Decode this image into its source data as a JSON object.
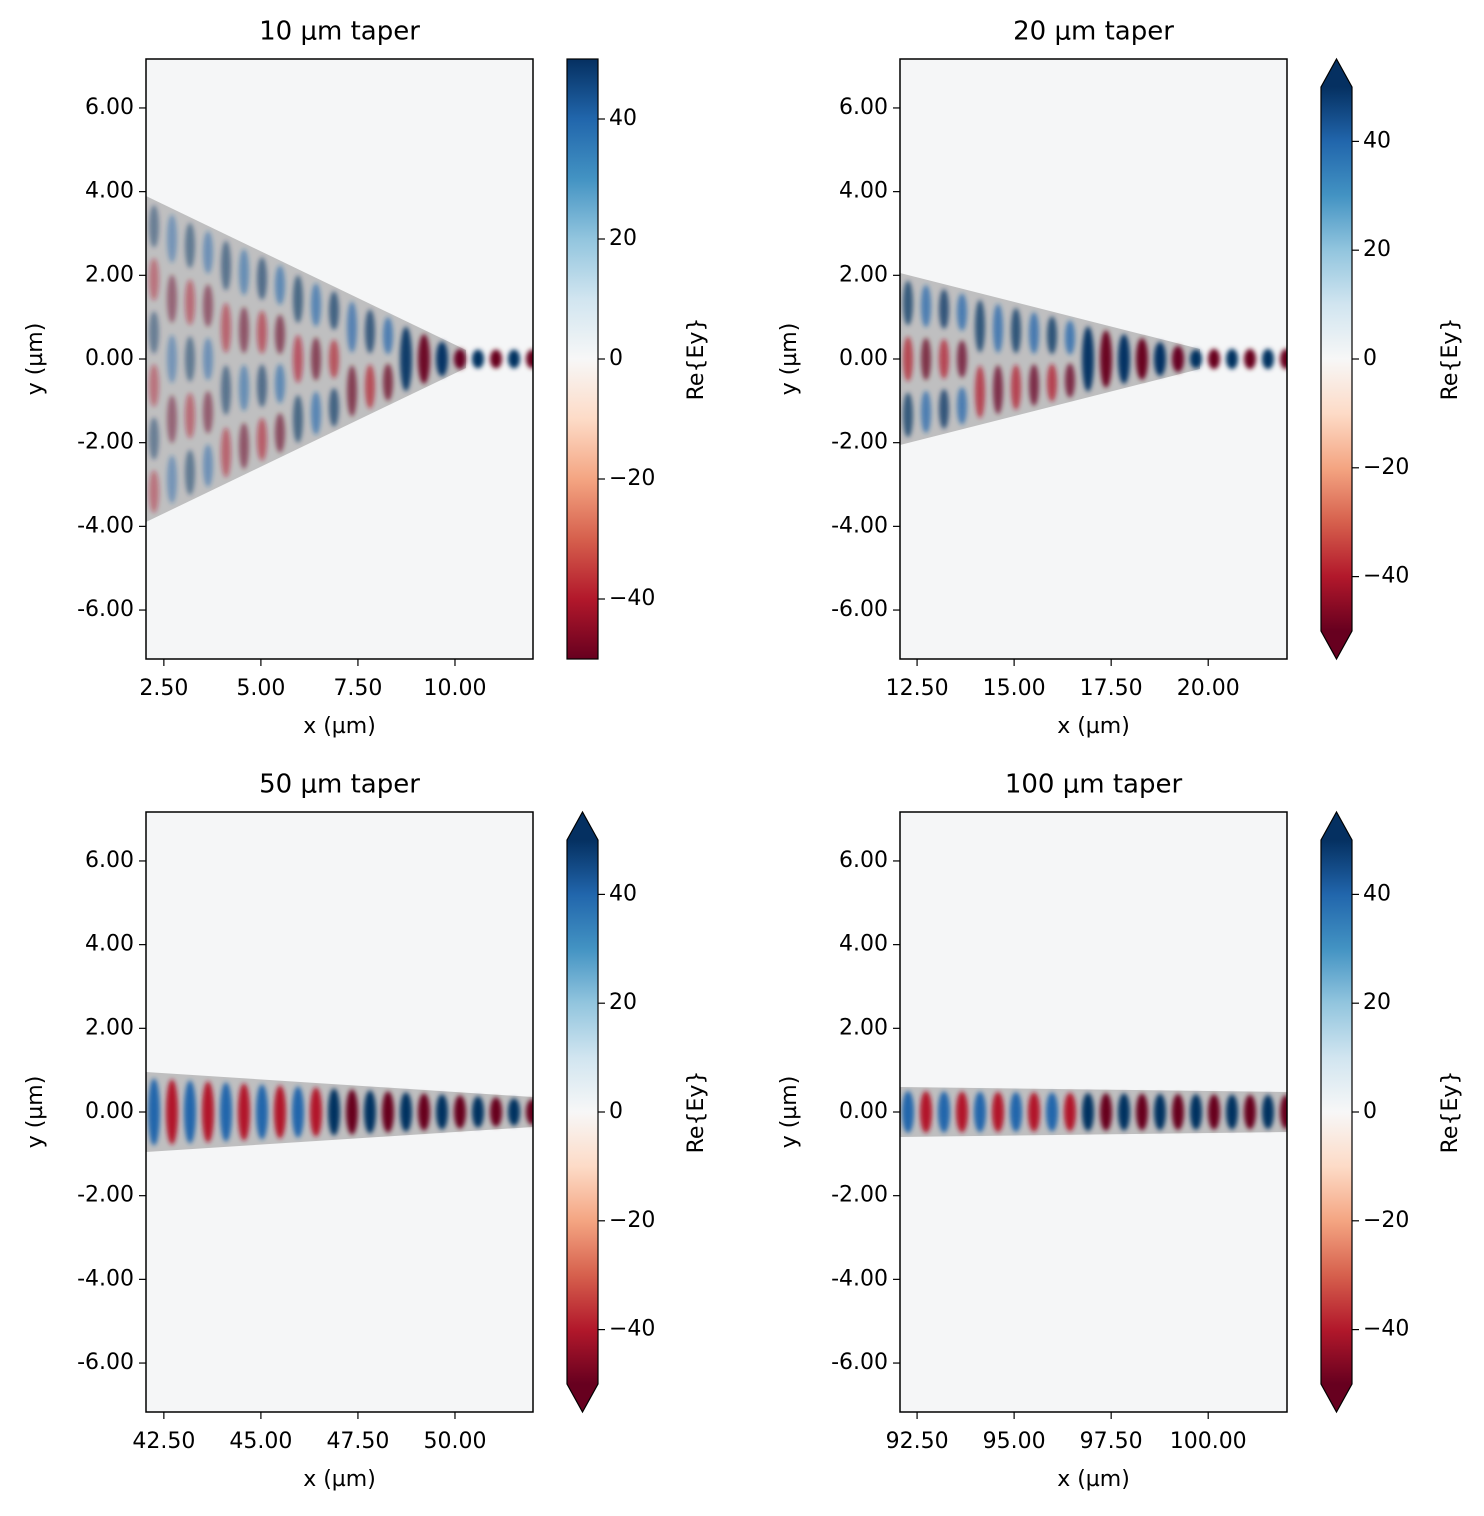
{
  "chart_data": [
    {
      "type": "heatmap",
      "title": "10 μm taper",
      "xlabel": "x (µm)",
      "ylabel": "y (µm)",
      "xlim": [
        2.04,
        12.01
      ],
      "ylim": [
        -7.17,
        7.17
      ],
      "xticks": [
        {
          "value": 2.5,
          "label": "2.50"
        },
        {
          "value": 5,
          "label": "5.00"
        },
        {
          "value": 7.5,
          "label": "7.50"
        },
        {
          "value": 10,
          "label": "10.00"
        }
      ],
      "yticks": [
        {
          "value": -6,
          "label": "-6.00"
        },
        {
          "value": -4,
          "label": "-4.00"
        },
        {
          "value": -2,
          "label": "-2.00"
        },
        {
          "value": 0,
          "label": "0.00"
        },
        {
          "value": 2,
          "label": "2.00"
        },
        {
          "value": 4,
          "label": "4.00"
        },
        {
          "value": 6,
          "label": "6.00"
        }
      ],
      "colorbar": {
        "label": "Re{Ey}",
        "lim": [
          -50,
          50
        ],
        "extend": "neither",
        "ticks": [
          {
            "value": -40,
            "label": "−40"
          },
          {
            "value": -20,
            "label": "−20"
          },
          0,
          20,
          40
        ]
      }
    },
    {
      "type": "heatmap",
      "title": "20 μm taper",
      "xlabel": "x (µm)",
      "ylabel": "y (µm)",
      "xlim": [
        12.06,
        22.03
      ],
      "ylim": [
        -7.17,
        7.17
      ],
      "xticks": [
        {
          "value": 12.5,
          "label": "12.50"
        },
        {
          "value": 15,
          "label": "15.00"
        },
        {
          "value": 17.5,
          "label": "17.50"
        },
        {
          "value": 20,
          "label": "20.00"
        }
      ],
      "yticks": [
        {
          "value": -6,
          "label": "-6.00"
        },
        {
          "value": -4,
          "label": "-4.00"
        },
        {
          "value": -2,
          "label": "-2.00"
        },
        {
          "value": 0,
          "label": "0.00"
        },
        {
          "value": 2,
          "label": "2.00"
        },
        {
          "value": 4,
          "label": "4.00"
        },
        {
          "value": 6,
          "label": "6.00"
        }
      ],
      "colorbar": {
        "label": "Re{Ey}",
        "lim": [
          -50,
          50
        ],
        "extend": "both",
        "ticks": [
          {
            "value": -40,
            "label": "−40"
          },
          {
            "value": -20,
            "label": "−20"
          },
          0,
          20,
          40
        ]
      }
    },
    {
      "type": "heatmap",
      "title": "50 μm taper",
      "xlabel": "x (µm)",
      "ylabel": "y (µm)",
      "xlim": [
        42.04,
        52.01
      ],
      "ylim": [
        -7.17,
        7.17
      ],
      "xticks": [
        {
          "value": 42.5,
          "label": "42.50"
        },
        {
          "value": 45,
          "label": "45.00"
        },
        {
          "value": 47.5,
          "label": "47.50"
        },
        {
          "value": 50,
          "label": "50.00"
        }
      ],
      "yticks": [
        {
          "value": -6,
          "label": "-6.00"
        },
        {
          "value": -4,
          "label": "-4.00"
        },
        {
          "value": -2,
          "label": "-2.00"
        },
        {
          "value": 0,
          "label": "0.00"
        },
        {
          "value": 2,
          "label": "2.00"
        },
        {
          "value": 4,
          "label": "4.00"
        },
        {
          "value": 6,
          "label": "6.00"
        }
      ],
      "colorbar": {
        "label": "Re{Ey}",
        "lim": [
          -50,
          50
        ],
        "extend": "both",
        "ticks": [
          {
            "value": -40,
            "label": "−40"
          },
          {
            "value": -20,
            "label": "−20"
          },
          0,
          20,
          40
        ]
      }
    },
    {
      "type": "heatmap",
      "title": "100 μm taper",
      "xlabel": "x (µm)",
      "ylabel": "y (µm)",
      "xlim": [
        92.06,
        102.03
      ],
      "ylim": [
        -7.17,
        7.17
      ],
      "xticks": [
        {
          "value": 92.5,
          "label": "92.50"
        },
        {
          "value": 95,
          "label": "95.00"
        },
        {
          "value": 97.5,
          "label": "97.50"
        },
        {
          "value": 100,
          "label": "100.00"
        }
      ],
      "yticks": [
        {
          "value": -6,
          "label": "-6.00"
        },
        {
          "value": -4,
          "label": "-4.00"
        },
        {
          "value": -2,
          "label": "-2.00"
        },
        {
          "value": 0,
          "label": "0.00"
        },
        {
          "value": 2,
          "label": "2.00"
        },
        {
          "value": 4,
          "label": "4.00"
        },
        {
          "value": 6,
          "label": "6.00"
        }
      ],
      "colorbar": {
        "label": "Re{Ey}",
        "lim": [
          -50,
          50
        ],
        "extend": "both",
        "ticks": [
          {
            "value": -40,
            "label": "−40"
          },
          {
            "value": -20,
            "label": "−20"
          },
          0,
          20,
          40
        ]
      }
    }
  ]
}
